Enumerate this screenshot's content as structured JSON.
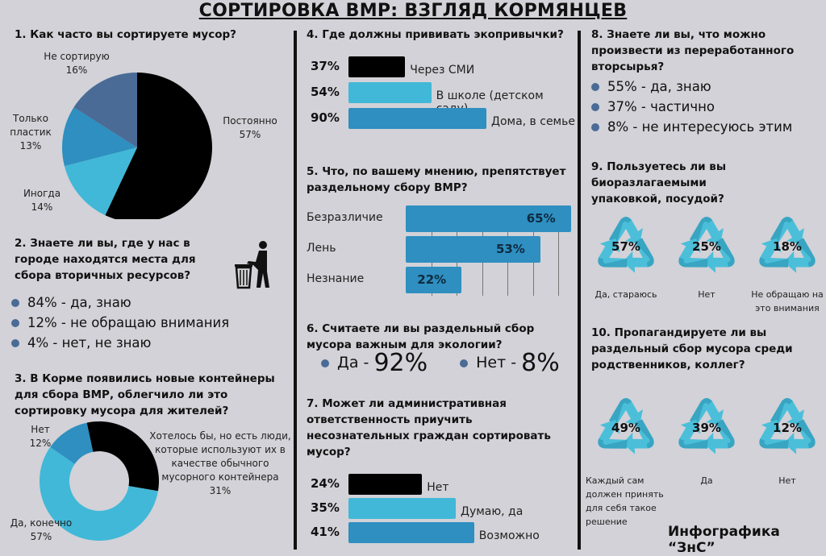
{
  "title": "СОРТИРОВКА ВМР: ВЗГЛЯД КОРМЯНЦЕВ",
  "footer": "Инфографика “ЗнС”",
  "colors": {
    "black": "#000000",
    "light_blue": "#41b8d8",
    "mid_blue": "#2e8fc0",
    "slate": "#4a6b96",
    "background": "#d2d2d8"
  },
  "chart_data": [
    {
      "id": "q1",
      "type": "pie",
      "title": "1. Как часто вы сортируете мусор?",
      "slices": [
        {
          "label": "Постоянно",
          "value": 57,
          "color": "#000000"
        },
        {
          "label": "Иногда",
          "value": 14,
          "color": "#41b8d8"
        },
        {
          "label": "Только пластик",
          "value": 13,
          "color": "#2e8fc0"
        },
        {
          "label": "Не сортирую",
          "value": 16,
          "color": "#4a6b96"
        }
      ]
    },
    {
      "id": "q2",
      "type": "table",
      "title": "2. Знаете ли вы, где у нас в городе находятся места для сбора вторичных ресурсов?",
      "items": [
        {
          "value": 84,
          "label": "да, знаю"
        },
        {
          "value": 12,
          "label": "не обращаю внимания"
        },
        {
          "value": 4,
          "label": "нет, не знаю"
        }
      ]
    },
    {
      "id": "q3",
      "type": "pie",
      "donut": true,
      "title": "3. В Корме появились новые контейнеры для сбора ВМР, облегчило ли это сортировку мусора для жителей?",
      "slices": [
        {
          "label": "Хотелось бы, но есть люди, которые используют их в качестве обычного мусорного контейнера",
          "value": 31,
          "color": "#000000"
        },
        {
          "label": "Да, конечно",
          "value": 57,
          "color": "#41b8d8"
        },
        {
          "label": "Нет",
          "value": 12,
          "color": "#2e8fc0"
        }
      ]
    },
    {
      "id": "q4",
      "type": "bar",
      "title": "4. Где должны прививать экопривычки?",
      "bars": [
        {
          "label": "Через СМИ",
          "value": 37,
          "color": "#000000"
        },
        {
          "label": "В школе (детском саду)",
          "value": 54,
          "color": "#41b8d8"
        },
        {
          "label": "Дома, в семье",
          "value": 90,
          "color": "#2e8fc0"
        }
      ]
    },
    {
      "id": "q5",
      "type": "bar",
      "title": "5. Что, по вашему мнению, препятствует раздельному сбору ВМР?",
      "bars": [
        {
          "label": "Безразличие",
          "value": 65,
          "color": "#2e8fc0"
        },
        {
          "label": "Лень",
          "value": 53,
          "color": "#2e8fc0"
        },
        {
          "label": "Незнание",
          "value": 22,
          "color": "#2e8fc0"
        }
      ]
    },
    {
      "id": "q6",
      "type": "table",
      "title": "6. Считаете ли вы раздельный сбор мусора важным для экологии?",
      "items": [
        {
          "label": "Да",
          "value": 92
        },
        {
          "label": "Нет",
          "value": 8
        }
      ]
    },
    {
      "id": "q7",
      "type": "bar",
      "title": "7. Может ли административная ответственность приучить несознательных граждан сортировать мусор?",
      "bars": [
        {
          "label": "Нет",
          "value": 24,
          "color": "#000000"
        },
        {
          "label": "Думаю, да",
          "value": 35,
          "color": "#41b8d8"
        },
        {
          "label": "Возможно",
          "value": 41,
          "color": "#2e8fc0"
        }
      ]
    },
    {
      "id": "q8",
      "type": "table",
      "title": "8. Знаете ли вы, что можно произвести из переработанного вторсырья?",
      "items": [
        {
          "value": 55,
          "label": "да, знаю"
        },
        {
          "value": 37,
          "label": "частично"
        },
        {
          "value": 8,
          "label": "не интересуюсь этим"
        }
      ]
    },
    {
      "id": "q9",
      "type": "table",
      "title": "9. Пользуетесь ли вы биоразлагаемыми упаковкой, посудой?",
      "items": [
        {
          "label": "Да, стараюсь",
          "value": 57
        },
        {
          "label": "Нет",
          "value": 25
        },
        {
          "label": "Не обращаю на это внимания",
          "value": 18
        }
      ]
    },
    {
      "id": "q10",
      "type": "table",
      "title": "10. Пропагандируете ли вы раздельный сбор мусора среди родственников, коллег?",
      "items": [
        {
          "label": "Каждый сам должен принять для себя такое решение",
          "value": 49
        },
        {
          "label": "Да",
          "value": 39
        },
        {
          "label": "Нет",
          "value": 12
        }
      ]
    }
  ]
}
